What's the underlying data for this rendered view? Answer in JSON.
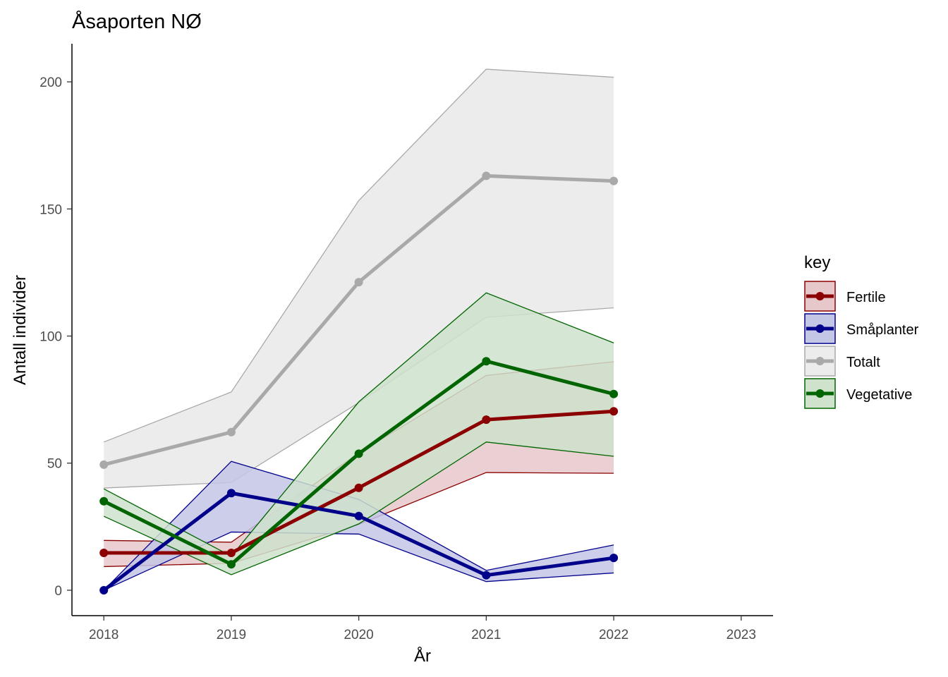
{
  "chart_data": {
    "type": "line",
    "title": "Åsaporten NØ",
    "xlabel": "År",
    "ylabel": "Antall individer",
    "x": [
      2018,
      2019,
      2020,
      2021,
      2022
    ],
    "xlim": [
      2017.75,
      2023.25
    ],
    "ylim": [
      -10,
      215
    ],
    "x_ticks": [
      "2018",
      "2019",
      "2020",
      "2021",
      "2022",
      "2023"
    ],
    "y_ticks": [
      "0",
      "50",
      "100",
      "150",
      "200"
    ],
    "grid": false,
    "legend": {
      "title": "key",
      "placement": "right"
    },
    "series": [
      {
        "name": "Fertile",
        "color": "#8b0000",
        "fill": "#e6c8ca",
        "values": [
          14.7,
          14.7,
          40.3,
          67.1,
          70.4
        ],
        "lower": [
          9.3,
          10.6,
          25.9,
          46.3,
          46.0
        ],
        "upper": [
          19.6,
          18.9,
          54.0,
          84.5,
          89.9
        ]
      },
      {
        "name": "Småplanter",
        "color": "#00008b",
        "fill": "#c4c6e6",
        "values": [
          0,
          38.2,
          29.2,
          5.9,
          12.7
        ],
        "lower": [
          0,
          22.9,
          22.1,
          3.4,
          6.8
        ],
        "upper": [
          0,
          50.7,
          35.7,
          7.8,
          17.8
        ]
      },
      {
        "name": "Totalt",
        "color": "#a9a9a9",
        "fill": "#ececec",
        "values": [
          49.4,
          62.2,
          121.2,
          163.0,
          161.0
        ],
        "lower": [
          40.2,
          42.4,
          73.8,
          107.4,
          111.1
        ],
        "upper": [
          58.3,
          78.0,
          153.3,
          205.0,
          201.8
        ]
      },
      {
        "name": "Vegetative",
        "color": "#006400",
        "fill": "#cfe2cc",
        "values": [
          35.0,
          10.2,
          53.7,
          90.1,
          77.2
        ],
        "lower": [
          29.1,
          6.1,
          26.1,
          58.3,
          52.7
        ],
        "upper": [
          39.9,
          13.4,
          74.1,
          117.0,
          97.3
        ]
      }
    ]
  }
}
